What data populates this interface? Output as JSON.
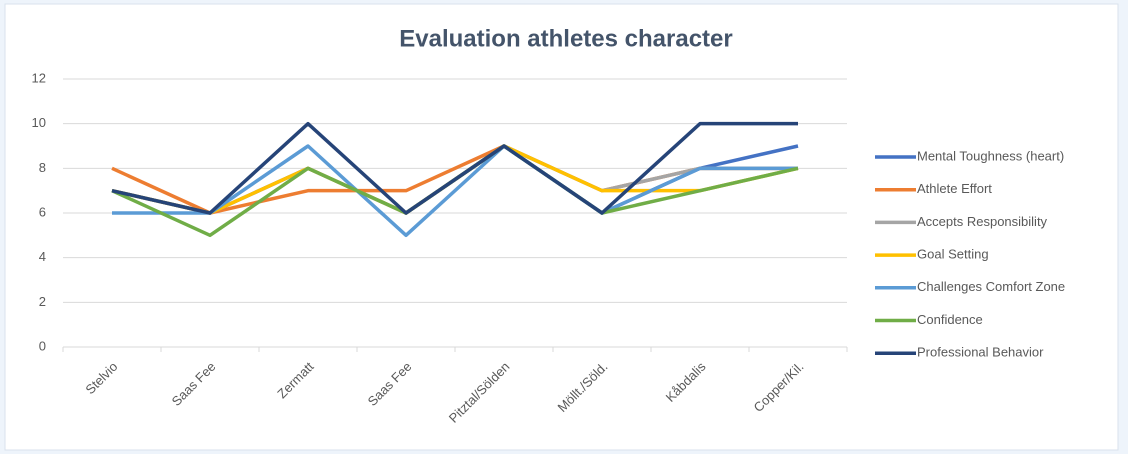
{
  "chart_data": {
    "type": "line",
    "title": "Evaluation athletes character",
    "categories": [
      "Stelvio",
      "Saas Fee",
      "Zermatt",
      "Saas Fee",
      "Pitztal/Sölden",
      "Möllt./Söld.",
      "Kåbdalis",
      "Copper/Kil."
    ],
    "series": [
      {
        "name": "Mental Toughness (heart)",
        "color": "#4472c4",
        "values": [
          7,
          6,
          8,
          6,
          9,
          6,
          8,
          9
        ]
      },
      {
        "name": "Athlete Effort",
        "color": "#ed7d31",
        "values": [
          8,
          6,
          7,
          7,
          9,
          7,
          8,
          8
        ]
      },
      {
        "name": "Accepts Responsibility",
        "color": "#a5a5a5",
        "values": [
          7,
          6,
          8,
          6,
          9,
          7,
          8,
          8
        ]
      },
      {
        "name": "Goal Setting",
        "color": "#ffc000",
        "values": [
          7,
          6,
          8,
          6,
          9,
          7,
          7,
          8
        ]
      },
      {
        "name": "Challenges Comfort Zone",
        "color": "#5b9bd5",
        "values": [
          6,
          6,
          9,
          5,
          9,
          6,
          8,
          8
        ]
      },
      {
        "name": "Confidence",
        "color": "#70ad47",
        "values": [
          7,
          5,
          8,
          6,
          9,
          6,
          7,
          8
        ]
      },
      {
        "name": "Professional Behavior",
        "color": "#264478",
        "values": [
          7,
          6,
          10,
          6,
          9,
          6,
          10,
          10
        ]
      }
    ],
    "ylim": [
      0,
      12
    ],
    "yticks": [
      0,
      2,
      4,
      6,
      8,
      10,
      12
    ],
    "grid": true,
    "legend": "right"
  }
}
